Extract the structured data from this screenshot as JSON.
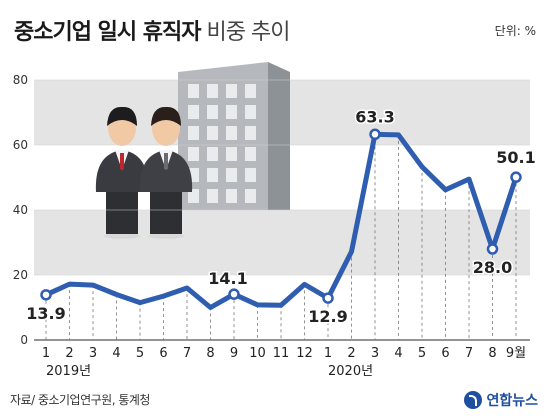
{
  "title": {
    "main": "중소기업 일시 휴직자",
    "sub": "비중 추이"
  },
  "unit": "단위: %",
  "source": "자료/ 중소기업연구원, 통계청",
  "brand": {
    "name": "연합뉴스",
    "icon": "yonhap-logo-icon"
  },
  "colors": {
    "line": "#2f5db0",
    "band": "#e4e4e4",
    "building": "#9aa0a6",
    "text": "#222222"
  },
  "chart_data": {
    "type": "line",
    "title": "중소기업 일시 휴직자 비중 추이",
    "xlabel": "",
    "ylabel": "",
    "ylim": [
      0,
      80
    ],
    "yticks": [
      0,
      20,
      40,
      60,
      80
    ],
    "grid": "horizontal bands",
    "categories": [
      "1",
      "2",
      "3",
      "4",
      "5",
      "6",
      "7",
      "8",
      "9",
      "10",
      "11",
      "12",
      "1",
      "2",
      "3",
      "4",
      "5",
      "6",
      "7",
      "8",
      "9월"
    ],
    "year_labels": [
      {
        "label": "2019년",
        "index": 0
      },
      {
        "label": "2020년",
        "index": 12
      }
    ],
    "series": [
      {
        "values": [
          13.9,
          17.2,
          16.9,
          14.0,
          11.5,
          13.5,
          16.0,
          10.0,
          14.1,
          10.8,
          10.7,
          17.1,
          12.9,
          27.2,
          63.3,
          63.1,
          53.3,
          46.2,
          49.5,
          28.0,
          50.1
        ]
      }
    ],
    "data_labels": [
      {
        "index": 0,
        "text": "13.9"
      },
      {
        "index": 8,
        "text": "14.1"
      },
      {
        "index": 12,
        "text": "12.9"
      },
      {
        "index": 14,
        "text": "63.3"
      },
      {
        "index": 19,
        "text": "28.0"
      },
      {
        "index": 20,
        "text": "50.1"
      }
    ]
  }
}
